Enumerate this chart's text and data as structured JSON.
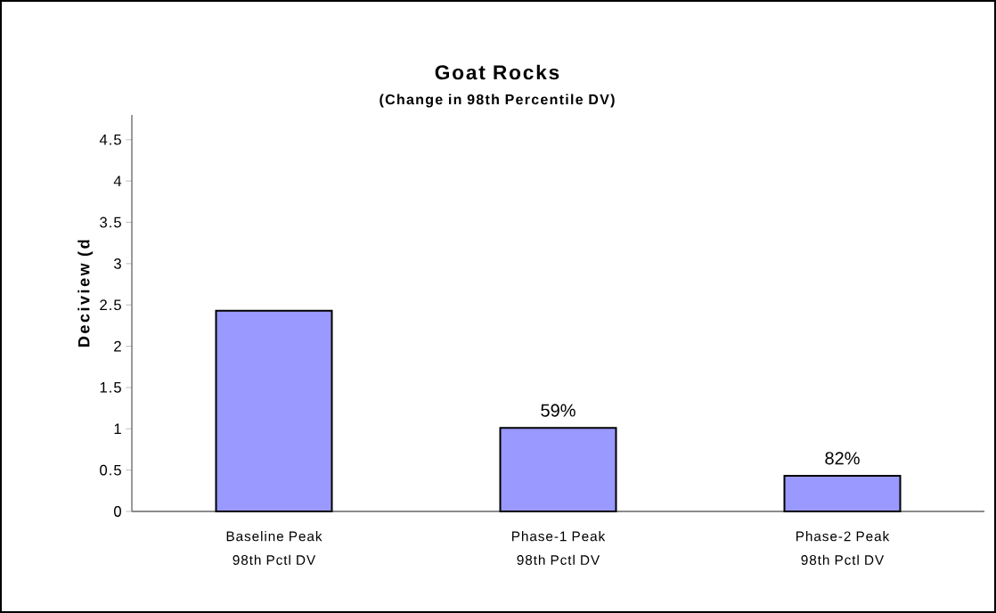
{
  "chart_data": {
    "type": "bar",
    "title": "Goat Rocks",
    "subtitle": "(Change in 98th Percentile DV)",
    "ylabel": "Deciview (d",
    "categories": [
      "Baseline Peak 98th Pctl DV",
      "Phase-1 Peak 98th Pctl DV",
      "Phase-2 Peak 98th Pctl DV"
    ],
    "values": [
      2.43,
      1.01,
      0.43
    ],
    "color": "#9999ff",
    "annotations": [
      {
        "text": "59%",
        "x": "Phase-1 Peak 98th Pctl DV",
        "y": 1.01
      },
      {
        "text": "82%",
        "x": "Phase-2 Peak 98th Pctl DV",
        "y": 0.43
      }
    ],
    "ylim": [
      0,
      4.8
    ],
    "yticks": [
      0,
      0.5,
      1,
      1.5,
      2,
      2.5,
      3,
      3.5,
      4,
      4.5
    ],
    "grid": false
  }
}
